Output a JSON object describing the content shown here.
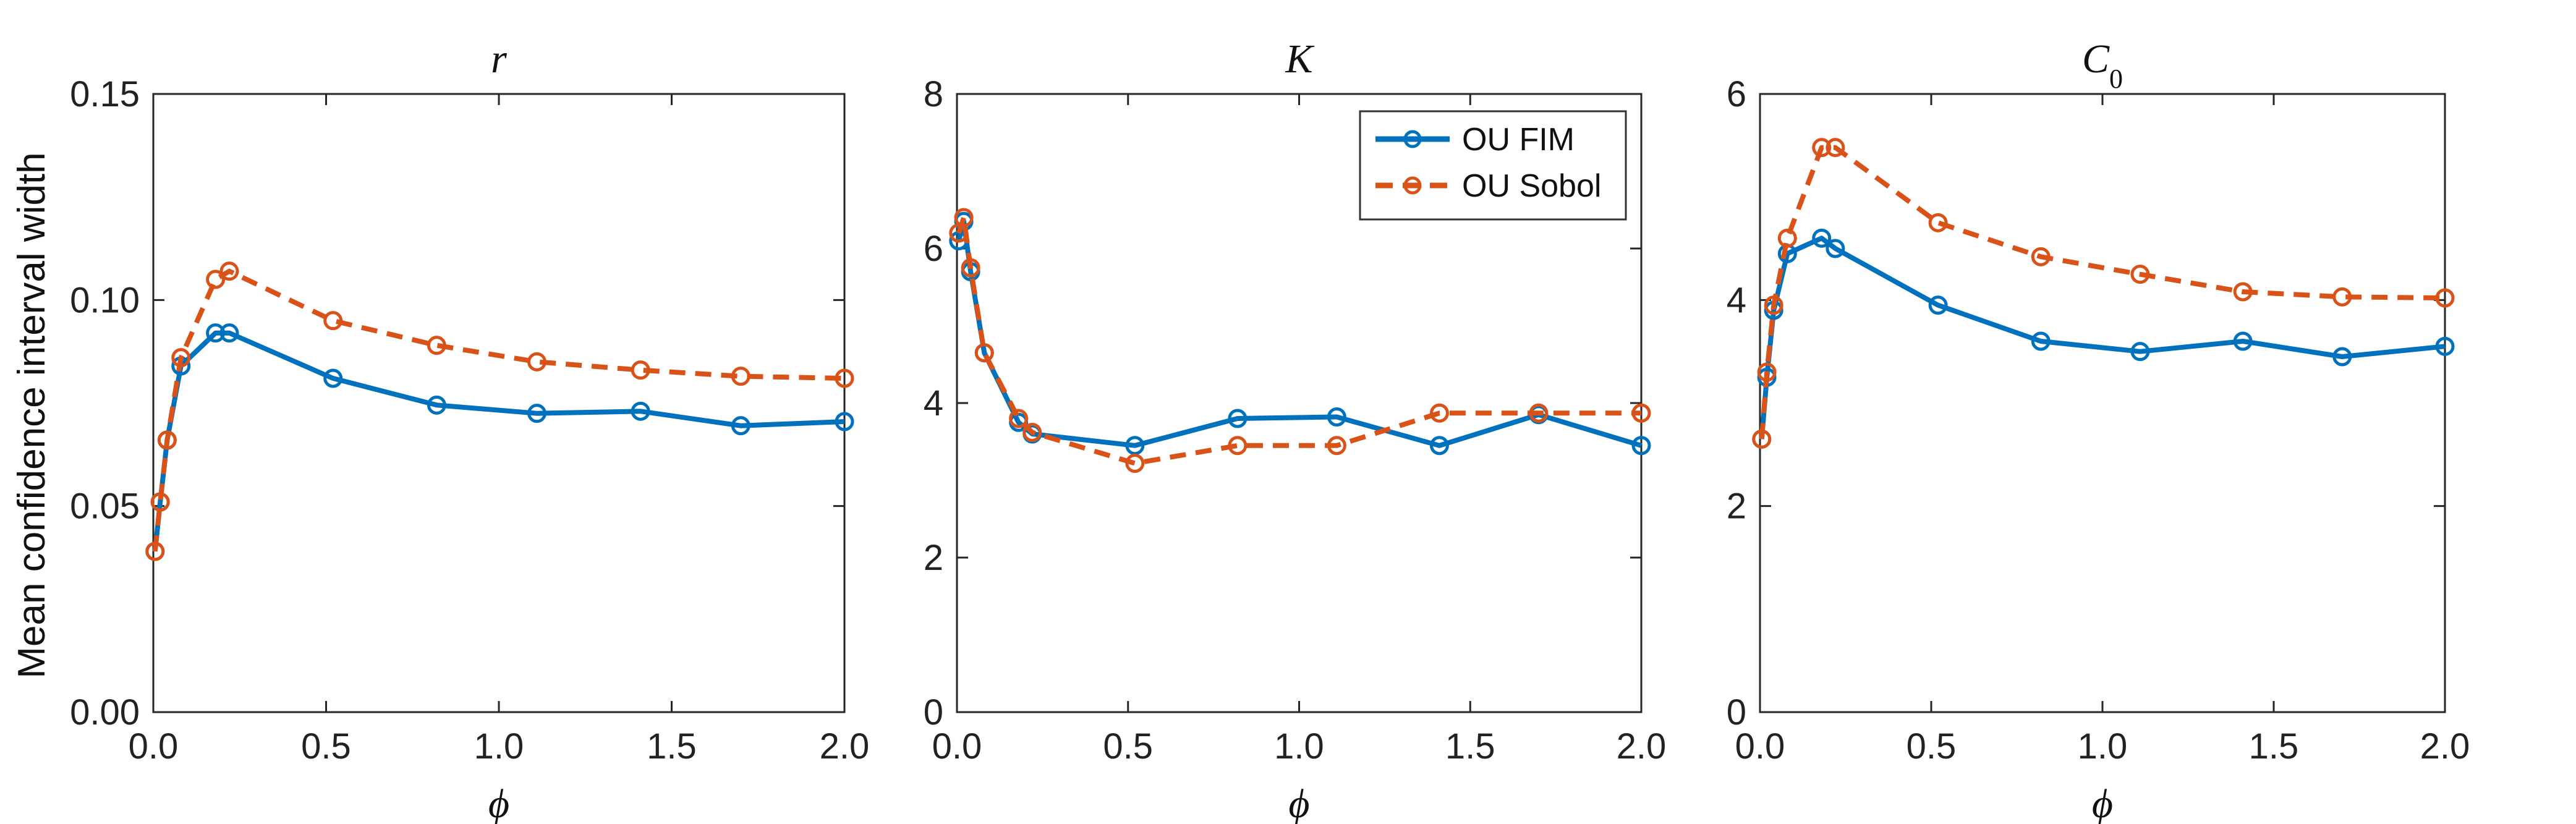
{
  "figure": {
    "ylabel": "Mean confidence interval width"
  },
  "legend": {
    "entries": [
      {
        "label": "OU FIM",
        "color": "#0072BD",
        "style": "solid"
      },
      {
        "label": "OU Sobol",
        "color": "#D95319",
        "style": "dashed"
      }
    ],
    "placement": "top-right of middle panel"
  },
  "chart_data": [
    {
      "type": "line",
      "title": "r",
      "xlabel": "ϕ",
      "xlim": [
        0,
        2
      ],
      "ylim": [
        0,
        0.15
      ],
      "xticks": [
        0,
        0.5,
        1,
        1.5,
        2
      ],
      "xtick_labels": [
        "0.0",
        "0.5",
        "1.0",
        "1.5",
        "2.0"
      ],
      "yticks": [
        0,
        0.05,
        0.1,
        0.15
      ],
      "ytick_labels": [
        "0.00",
        "0.05",
        "0.10",
        "0.15"
      ],
      "grid": false,
      "series": [
        {
          "name": "OU FIM",
          "color": "#0072BD",
          "dash": false,
          "x": [
            0.005,
            0.02,
            0.04,
            0.08,
            0.18,
            0.22,
            0.52,
            0.82,
            1.11,
            1.41,
            1.7,
            2.0
          ],
          "y": [
            0.039,
            0.051,
            0.066,
            0.084,
            0.092,
            0.092,
            0.081,
            0.0745,
            0.0725,
            0.073,
            0.0695,
            0.0705
          ]
        },
        {
          "name": "OU Sobol",
          "color": "#D95319",
          "dash": true,
          "x": [
            0.005,
            0.02,
            0.04,
            0.08,
            0.18,
            0.22,
            0.52,
            0.82,
            1.11,
            1.41,
            1.7,
            2.0
          ],
          "y": [
            0.039,
            0.051,
            0.066,
            0.086,
            0.105,
            0.107,
            0.095,
            0.089,
            0.085,
            0.083,
            0.0815,
            0.081
          ]
        }
      ]
    },
    {
      "type": "line",
      "title": "K",
      "xlabel": "ϕ",
      "xlim": [
        0,
        2
      ],
      "ylim": [
        0,
        8
      ],
      "xticks": [
        0,
        0.5,
        1,
        1.5,
        2
      ],
      "xtick_labels": [
        "0.0",
        "0.5",
        "1.0",
        "1.5",
        "2.0"
      ],
      "yticks": [
        0,
        2,
        4,
        6,
        8
      ],
      "ytick_labels": [
        "0",
        "2",
        "4",
        "6",
        "8"
      ],
      "grid": false,
      "series": [
        {
          "name": "OU FIM",
          "color": "#0072BD",
          "dash": false,
          "x": [
            0.005,
            0.02,
            0.04,
            0.08,
            0.18,
            0.22,
            0.52,
            0.82,
            1.11,
            1.41,
            1.7,
            2.0
          ],
          "y": [
            6.1,
            6.35,
            5.7,
            4.65,
            3.75,
            3.6,
            3.45,
            3.8,
            3.82,
            3.45,
            3.85,
            3.45
          ]
        },
        {
          "name": "OU Sobol",
          "color": "#D95319",
          "dash": true,
          "x": [
            0.005,
            0.02,
            0.04,
            0.08,
            0.18,
            0.22,
            0.52,
            0.82,
            1.11,
            1.41,
            1.7,
            2.0
          ],
          "y": [
            6.2,
            6.4,
            5.75,
            4.65,
            3.8,
            3.62,
            3.22,
            3.45,
            3.45,
            3.87,
            3.87,
            3.87
          ]
        }
      ]
    },
    {
      "type": "line",
      "title": "C0",
      "xlabel": "ϕ",
      "xlim": [
        0,
        2
      ],
      "ylim": [
        0,
        6
      ],
      "xticks": [
        0,
        0.5,
        1,
        1.5,
        2
      ],
      "xtick_labels": [
        "0.0",
        "0.5",
        "1.0",
        "1.5",
        "2.0"
      ],
      "yticks": [
        0,
        2,
        4,
        6
      ],
      "ytick_labels": [
        "0",
        "2",
        "4",
        "6"
      ],
      "grid": false,
      "series": [
        {
          "name": "OU FIM",
          "color": "#0072BD",
          "dash": false,
          "x": [
            0.005,
            0.02,
            0.04,
            0.08,
            0.18,
            0.22,
            0.52,
            0.82,
            1.11,
            1.41,
            1.7,
            2.0
          ],
          "y": [
            2.65,
            3.25,
            3.9,
            4.45,
            4.6,
            4.5,
            3.95,
            3.6,
            3.5,
            3.6,
            3.45,
            3.55
          ]
        },
        {
          "name": "OU Sobol",
          "color": "#D95319",
          "dash": true,
          "x": [
            0.005,
            0.02,
            0.04,
            0.08,
            0.18,
            0.22,
            0.52,
            0.82,
            1.11,
            1.41,
            1.7,
            2.0
          ],
          "y": [
            2.65,
            3.3,
            3.95,
            4.6,
            5.48,
            5.48,
            4.75,
            4.42,
            4.25,
            4.08,
            4.03,
            4.02
          ]
        }
      ]
    }
  ]
}
